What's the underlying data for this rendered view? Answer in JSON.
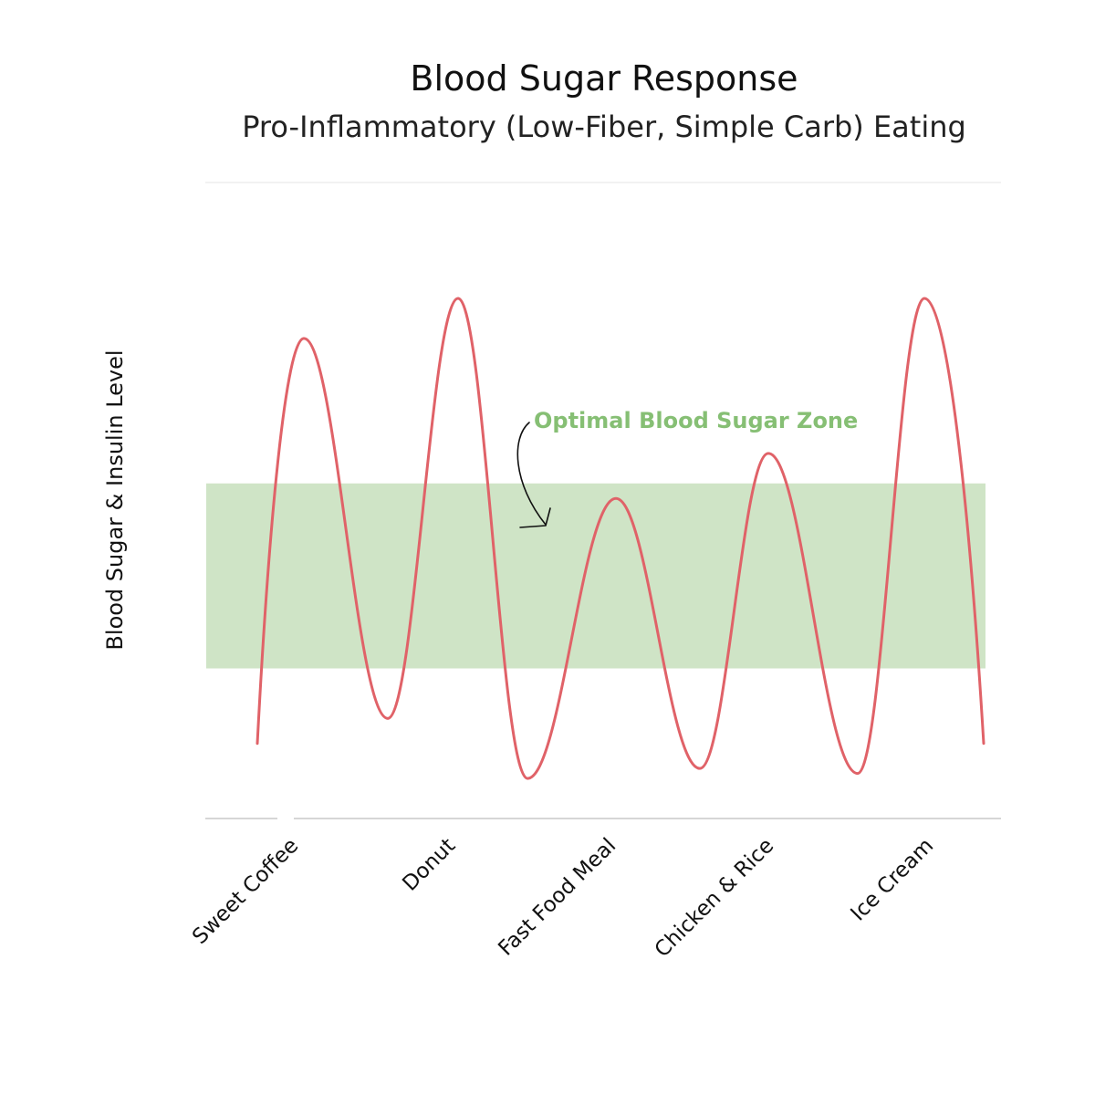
{
  "chart_data": {
    "type": "line",
    "title": "Blood Sugar Response",
    "subtitle": "Pro-Inflammatory (Low-Fiber, Simple Carb) Eating",
    "xlabel": "",
    "ylabel": "Blood Sugar & Insulin Level",
    "categories": [
      "Sweet Coffee",
      "Donut",
      "Fast Food Meal",
      "Chicken & Rice",
      "Ice Cream"
    ],
    "ylim": [
      0,
      100
    ],
    "grid": false,
    "y_ticks_shown": false,
    "series": [
      {
        "name": "",
        "color": "#e06268",
        "peaks": [
          92,
          100,
          60,
          69,
          100
        ],
        "troughs": [
          16,
          4,
          6,
          5,
          11
        ],
        "start_value": 11,
        "end_value": 11
      }
    ],
    "bands": [
      {
        "label": "Optimal Blood Sugar Zone",
        "y_range": [
          26,
          63
        ],
        "color": "#cfe4c6",
        "label_color": "#86bf74"
      }
    ],
    "annotations": [
      {
        "text": "Optimal Blood Sugar Zone",
        "points_to": "Optimal Blood Sugar Zone",
        "color": "#86bf74"
      }
    ]
  }
}
